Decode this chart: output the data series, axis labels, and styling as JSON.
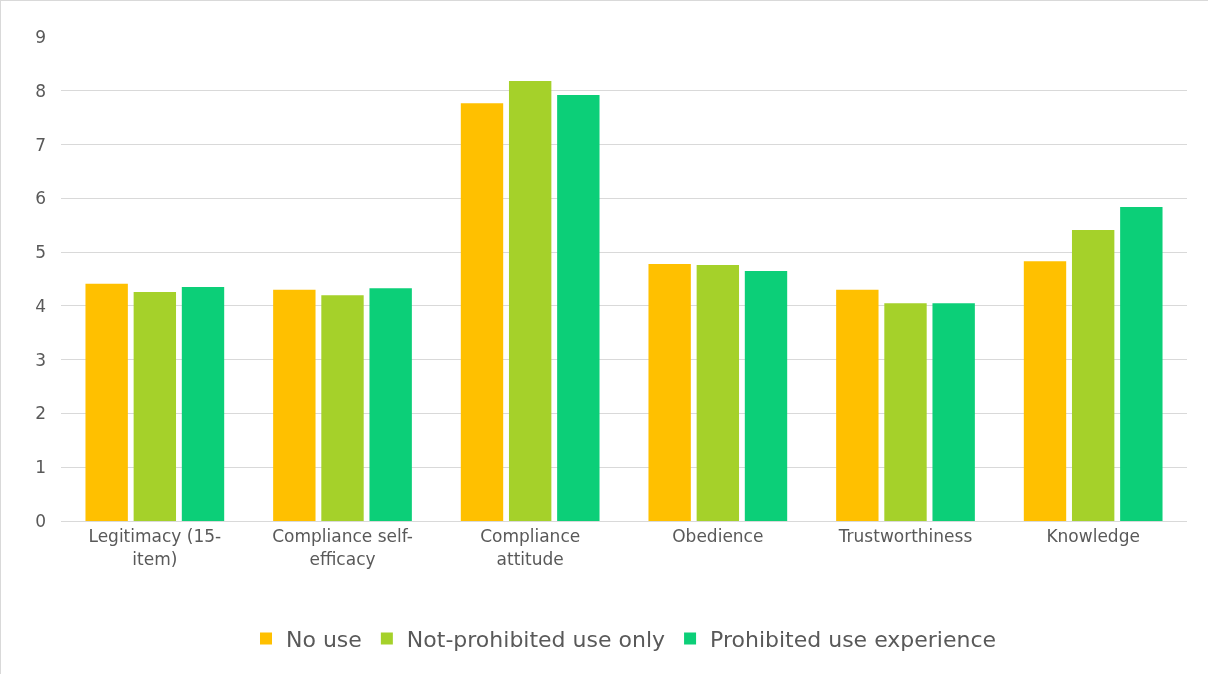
{
  "chart_data": {
    "type": "bar",
    "categories": [
      "Legitimacy (15-item)",
      "Compliance self-efficacy",
      "Compliance attitude",
      "Obedience",
      "Trustworthiness",
      "Knowledge"
    ],
    "series": [
      {
        "name": "No use",
        "color": "#ffc000",
        "values": [
          4.41,
          4.3,
          7.77,
          4.78,
          4.3,
          4.83
        ]
      },
      {
        "name": "Not-prohibited use only",
        "color": "#a5d12a",
        "values": [
          4.26,
          4.2,
          8.18,
          4.76,
          4.05,
          5.41
        ]
      },
      {
        "name": "Prohibited use experience",
        "color": "#0ccf78",
        "values": [
          4.35,
          4.33,
          7.92,
          4.65,
          4.05,
          5.84
        ]
      }
    ],
    "ylim": [
      0,
      9
    ],
    "yticks": [
      0,
      1,
      2,
      3,
      4,
      5,
      6,
      7,
      8,
      9
    ],
    "grid": "y",
    "legend": "bottom"
  }
}
